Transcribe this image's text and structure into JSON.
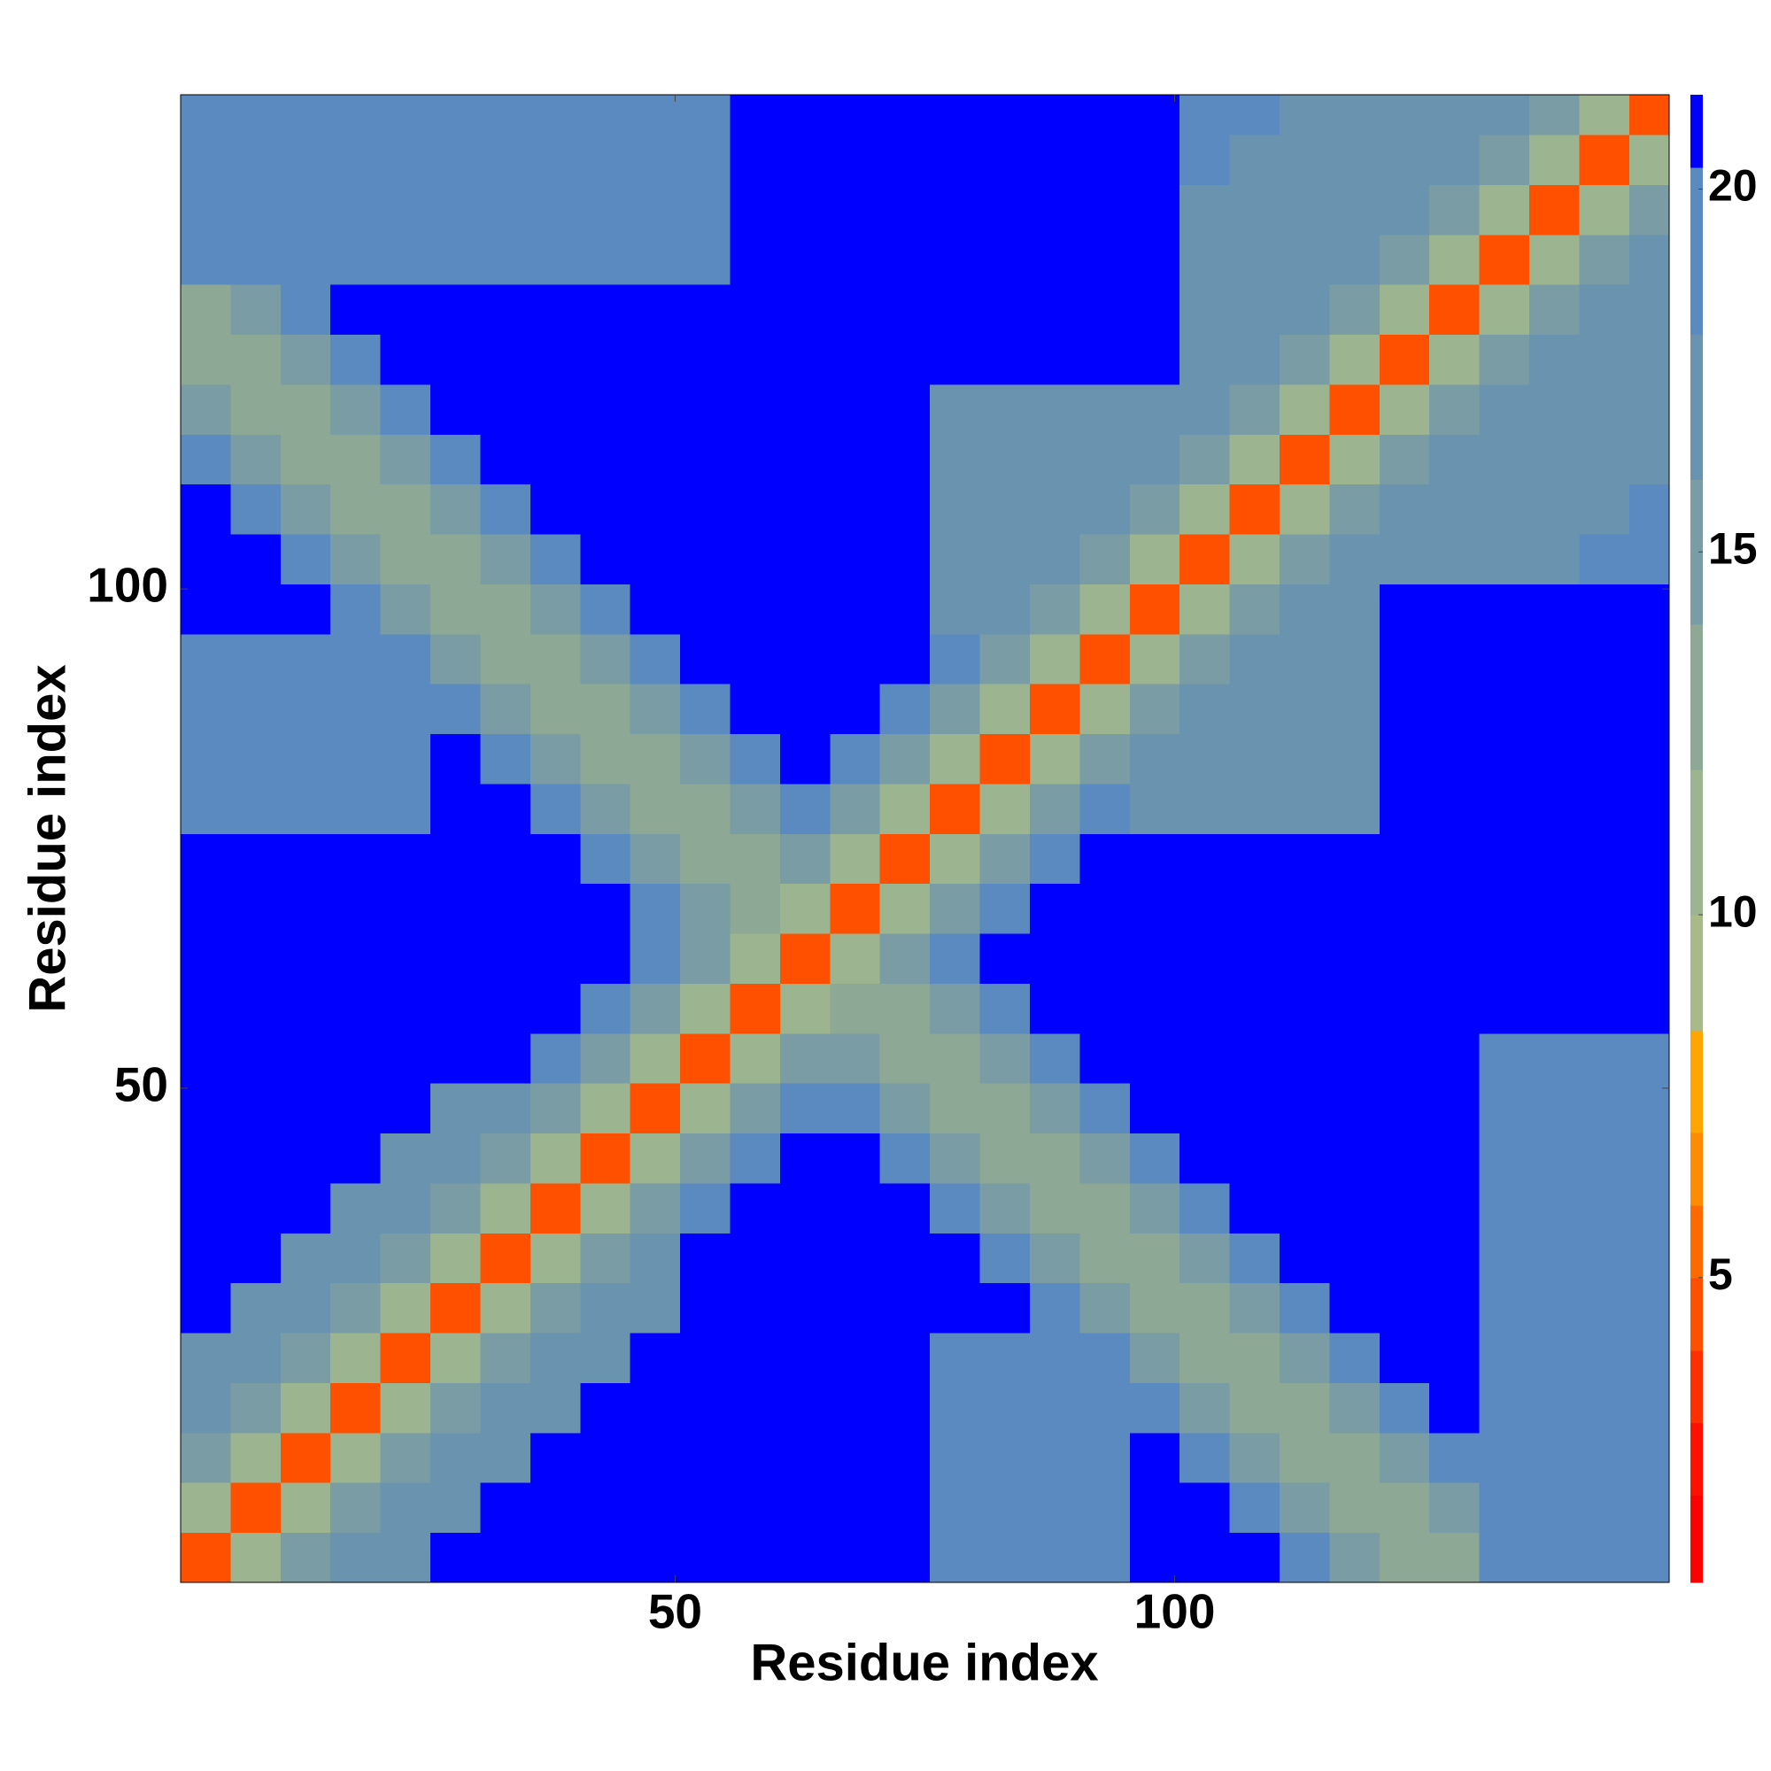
{
  "chart_data": {
    "type": "heatmap",
    "x_label": "Residue index",
    "y_label": "Residue index",
    "xlim": [
      0.5,
      149.5
    ],
    "ylim": [
      0.5,
      149.5
    ],
    "xticks": [
      50,
      100
    ],
    "yticks": [
      50,
      100
    ],
    "xbins": [
      0.5,
      5.5,
      10.5,
      15.5,
      20.5,
      25.5,
      30.5,
      35.5,
      40.5,
      45.5,
      50.5,
      55.5,
      60.5,
      65.5,
      70.5,
      75.5,
      80.5,
      85.5,
      90.5,
      95.5,
      100.5,
      105.5,
      110.5,
      115.5,
      120.5,
      125.5,
      130.5,
      135.5,
      140.5,
      145.5,
      149.5
    ],
    "ybins": [
      0.5,
      5.5,
      10.5,
      15.5,
      20.5,
      25.5,
      30.5,
      35.5,
      40.5,
      45.5,
      50.5,
      55.5,
      60.5,
      65.5,
      70.5,
      75.5,
      80.5,
      85.5,
      90.5,
      95.5,
      100.5,
      105.5,
      110.5,
      115.5,
      120.5,
      125.5,
      130.5,
      135.5,
      140.5,
      145.5,
      149.5
    ],
    "values": [
      [
        4,
        10,
        15,
        17,
        17,
        21,
        21,
        21,
        21,
        21,
        21,
        21,
        21,
        21,
        21,
        18,
        18,
        18,
        18,
        21,
        21,
        21,
        18,
        15,
        12,
        12,
        20,
        20,
        20,
        20
      ],
      [
        10,
        4,
        10,
        15,
        17,
        17,
        21,
        21,
        21,
        21,
        21,
        21,
        21,
        21,
        21,
        18,
        18,
        18,
        18,
        21,
        21,
        18,
        15,
        12,
        12,
        15,
        20,
        20,
        20,
        20
      ],
      [
        15,
        10,
        4,
        10,
        15,
        17,
        17,
        21,
        21,
        21,
        21,
        21,
        21,
        21,
        21,
        18,
        18,
        18,
        18,
        21,
        18,
        15,
        12,
        12,
        15,
        18,
        20,
        20,
        20,
        20
      ],
      [
        17,
        15,
        10,
        4,
        10,
        15,
        17,
        17,
        21,
        21,
        21,
        21,
        21,
        21,
        21,
        18,
        18,
        18,
        18,
        18,
        15,
        12,
        12,
        15,
        18,
        21,
        20,
        20,
        20,
        20
      ],
      [
        17,
        17,
        15,
        10,
        4,
        10,
        15,
        17,
        17,
        21,
        21,
        21,
        21,
        21,
        21,
        18,
        18,
        18,
        18,
        15,
        12,
        12,
        15,
        18,
        21,
        21,
        20,
        20,
        20,
        20
      ],
      [
        21,
        17,
        17,
        15,
        10,
        4,
        10,
        15,
        17,
        17,
        21,
        21,
        21,
        21,
        21,
        21,
        21,
        18,
        15,
        12,
        12,
        15,
        18,
        21,
        21,
        21,
        20,
        20,
        20,
        20
      ],
      [
        21,
        21,
        17,
        17,
        15,
        10,
        4,
        10,
        15,
        17,
        21,
        21,
        21,
        21,
        21,
        21,
        18,
        15,
        12,
        12,
        15,
        18,
        21,
        21,
        21,
        21,
        20,
        20,
        20,
        20
      ],
      [
        21,
        21,
        21,
        17,
        17,
        15,
        10,
        4,
        10,
        15,
        20,
        21,
        21,
        21,
        21,
        18,
        15,
        12,
        12,
        15,
        18,
        21,
        21,
        21,
        21,
        21,
        20,
        20,
        20,
        20
      ],
      [
        21,
        21,
        21,
        21,
        17,
        17,
        15,
        10,
        4,
        10,
        15,
        20,
        21,
        21,
        18,
        15,
        12,
        12,
        15,
        18,
        21,
        21,
        21,
        21,
        21,
        21,
        20,
        20,
        20,
        20
      ],
      [
        21,
        21,
        21,
        21,
        21,
        17,
        17,
        15,
        10,
        4,
        10,
        15,
        20,
        18,
        15,
        12,
        12,
        15,
        18,
        21,
        21,
        21,
        21,
        21,
        21,
        21,
        20,
        20,
        20,
        20
      ],
      [
        21,
        21,
        21,
        21,
        21,
        21,
        21,
        20,
        15,
        10,
        4,
        10,
        15,
        15,
        12,
        12,
        15,
        18,
        21,
        21,
        21,
        21,
        21,
        21,
        21,
        21,
        20,
        20,
        20,
        20
      ],
      [
        21,
        21,
        21,
        21,
        21,
        21,
        21,
        21,
        20,
        15,
        10,
        4,
        10,
        12,
        12,
        15,
        18,
        21,
        21,
        21,
        21,
        21,
        21,
        21,
        21,
        21,
        21,
        21,
        21,
        21
      ],
      [
        21,
        21,
        21,
        21,
        21,
        21,
        21,
        21,
        21,
        20,
        15,
        10,
        4,
        10,
        15,
        18,
        21,
        21,
        21,
        21,
        21,
        21,
        21,
        21,
        21,
        21,
        21,
        21,
        21,
        21
      ],
      [
        21,
        21,
        21,
        21,
        21,
        21,
        21,
        21,
        21,
        18,
        15,
        12,
        10,
        4,
        10,
        15,
        20,
        21,
        21,
        21,
        21,
        21,
        21,
        21,
        21,
        21,
        21,
        21,
        21,
        21
      ],
      [
        21,
        21,
        21,
        21,
        21,
        21,
        21,
        21,
        18,
        15,
        12,
        12,
        15,
        10,
        4,
        10,
        15,
        20,
        21,
        21,
        21,
        21,
        21,
        21,
        21,
        21,
        21,
        21,
        21,
        21
      ],
      [
        18,
        18,
        18,
        18,
        18,
        21,
        21,
        18,
        15,
        12,
        12,
        15,
        18,
        15,
        10,
        4,
        10,
        15,
        20,
        17,
        17,
        17,
        17,
        17,
        21,
        21,
        21,
        21,
        21,
        21
      ],
      [
        18,
        18,
        18,
        18,
        18,
        21,
        18,
        15,
        12,
        12,
        15,
        18,
        21,
        20,
        15,
        10,
        4,
        10,
        15,
        17,
        17,
        17,
        17,
        17,
        21,
        21,
        21,
        21,
        21,
        21
      ],
      [
        18,
        18,
        18,
        18,
        18,
        18,
        15,
        12,
        12,
        15,
        18,
        21,
        21,
        21,
        20,
        15,
        10,
        4,
        10,
        15,
        17,
        17,
        17,
        17,
        21,
        21,
        21,
        21,
        21,
        21
      ],
      [
        18,
        18,
        18,
        18,
        18,
        15,
        12,
        12,
        15,
        18,
        21,
        21,
        21,
        21,
        21,
        20,
        15,
        10,
        4,
        10,
        15,
        17,
        17,
        17,
        21,
        21,
        21,
        21,
        21,
        21
      ],
      [
        21,
        21,
        21,
        18,
        15,
        12,
        12,
        15,
        18,
        21,
        21,
        21,
        21,
        21,
        21,
        17,
        17,
        15,
        10,
        4,
        10,
        15,
        17,
        17,
        21,
        21,
        21,
        21,
        21,
        21
      ],
      [
        21,
        21,
        18,
        15,
        12,
        12,
        15,
        18,
        21,
        21,
        21,
        21,
        21,
        21,
        21,
        17,
        17,
        17,
        15,
        10,
        4,
        10,
        15,
        17,
        17,
        17,
        17,
        17,
        19,
        19
      ],
      [
        21,
        18,
        15,
        12,
        12,
        15,
        18,
        21,
        21,
        21,
        21,
        21,
        21,
        21,
        21,
        17,
        17,
        17,
        17,
        15,
        10,
        4,
        10,
        15,
        17,
        17,
        17,
        17,
        17,
        19
      ],
      [
        18,
        15,
        12,
        12,
        15,
        18,
        21,
        21,
        21,
        21,
        21,
        21,
        21,
        21,
        21,
        17,
        17,
        17,
        17,
        17,
        15,
        10,
        4,
        10,
        15,
        17,
        17,
        17,
        17,
        17
      ],
      [
        15,
        12,
        12,
        15,
        18,
        21,
        21,
        21,
        21,
        21,
        21,
        21,
        21,
        21,
        21,
        17,
        17,
        17,
        17,
        17,
        17,
        15,
        10,
        4,
        10,
        15,
        17,
        17,
        17,
        17
      ],
      [
        12,
        12,
        15,
        18,
        21,
        21,
        21,
        21,
        21,
        21,
        21,
        21,
        21,
        21,
        21,
        21,
        21,
        21,
        21,
        21,
        17,
        17,
        15,
        10,
        4,
        10,
        15,
        17,
        17,
        17
      ],
      [
        12,
        15,
        18,
        21,
        21,
        21,
        21,
        21,
        21,
        21,
        21,
        21,
        21,
        21,
        21,
        21,
        21,
        21,
        21,
        21,
        17,
        17,
        17,
        15,
        10,
        4,
        10,
        15,
        17,
        17
      ],
      [
        20,
        20,
        20,
        20,
        20,
        20,
        20,
        20,
        20,
        20,
        20,
        21,
        21,
        21,
        21,
        21,
        21,
        21,
        21,
        21,
        17,
        17,
        17,
        17,
        15,
        10,
        4,
        10,
        15,
        17
      ],
      [
        20,
        20,
        20,
        20,
        20,
        20,
        20,
        20,
        20,
        20,
        20,
        21,
        21,
        21,
        21,
        21,
        21,
        21,
        21,
        21,
        17,
        17,
        17,
        17,
        17,
        15,
        10,
        4,
        10,
        15
      ],
      [
        20,
        20,
        20,
        20,
        20,
        20,
        20,
        20,
        20,
        20,
        20,
        21,
        21,
        21,
        21,
        21,
        21,
        21,
        21,
        21,
        19,
        17,
        17,
        17,
        17,
        17,
        15,
        10,
        4,
        10
      ],
      [
        20,
        20,
        20,
        20,
        20,
        20,
        20,
        20,
        20,
        20,
        20,
        21,
        21,
        21,
        21,
        21,
        21,
        21,
        21,
        21,
        19,
        19,
        17,
        17,
        17,
        17,
        17,
        15,
        10,
        4
      ]
    ],
    "colorbar": {
      "ticks": [
        5,
        10,
        15,
        20
      ],
      "bounds": [
        0.8,
        2,
        3,
        4,
        5,
        6,
        7,
        8.4,
        10,
        12,
        14,
        16,
        18,
        20.3,
        21.3
      ],
      "colors": [
        "#ff0000",
        "#ff1000",
        "#ff3000",
        "#ff5000",
        "#ff6a00",
        "#ff8c00",
        "#ffa500",
        "#a8b98a",
        "#9cb48f",
        "#8da894",
        "#7a9ca4",
        "#6a93b0",
        "#5a8abf",
        "#0000ff"
      ]
    }
  }
}
